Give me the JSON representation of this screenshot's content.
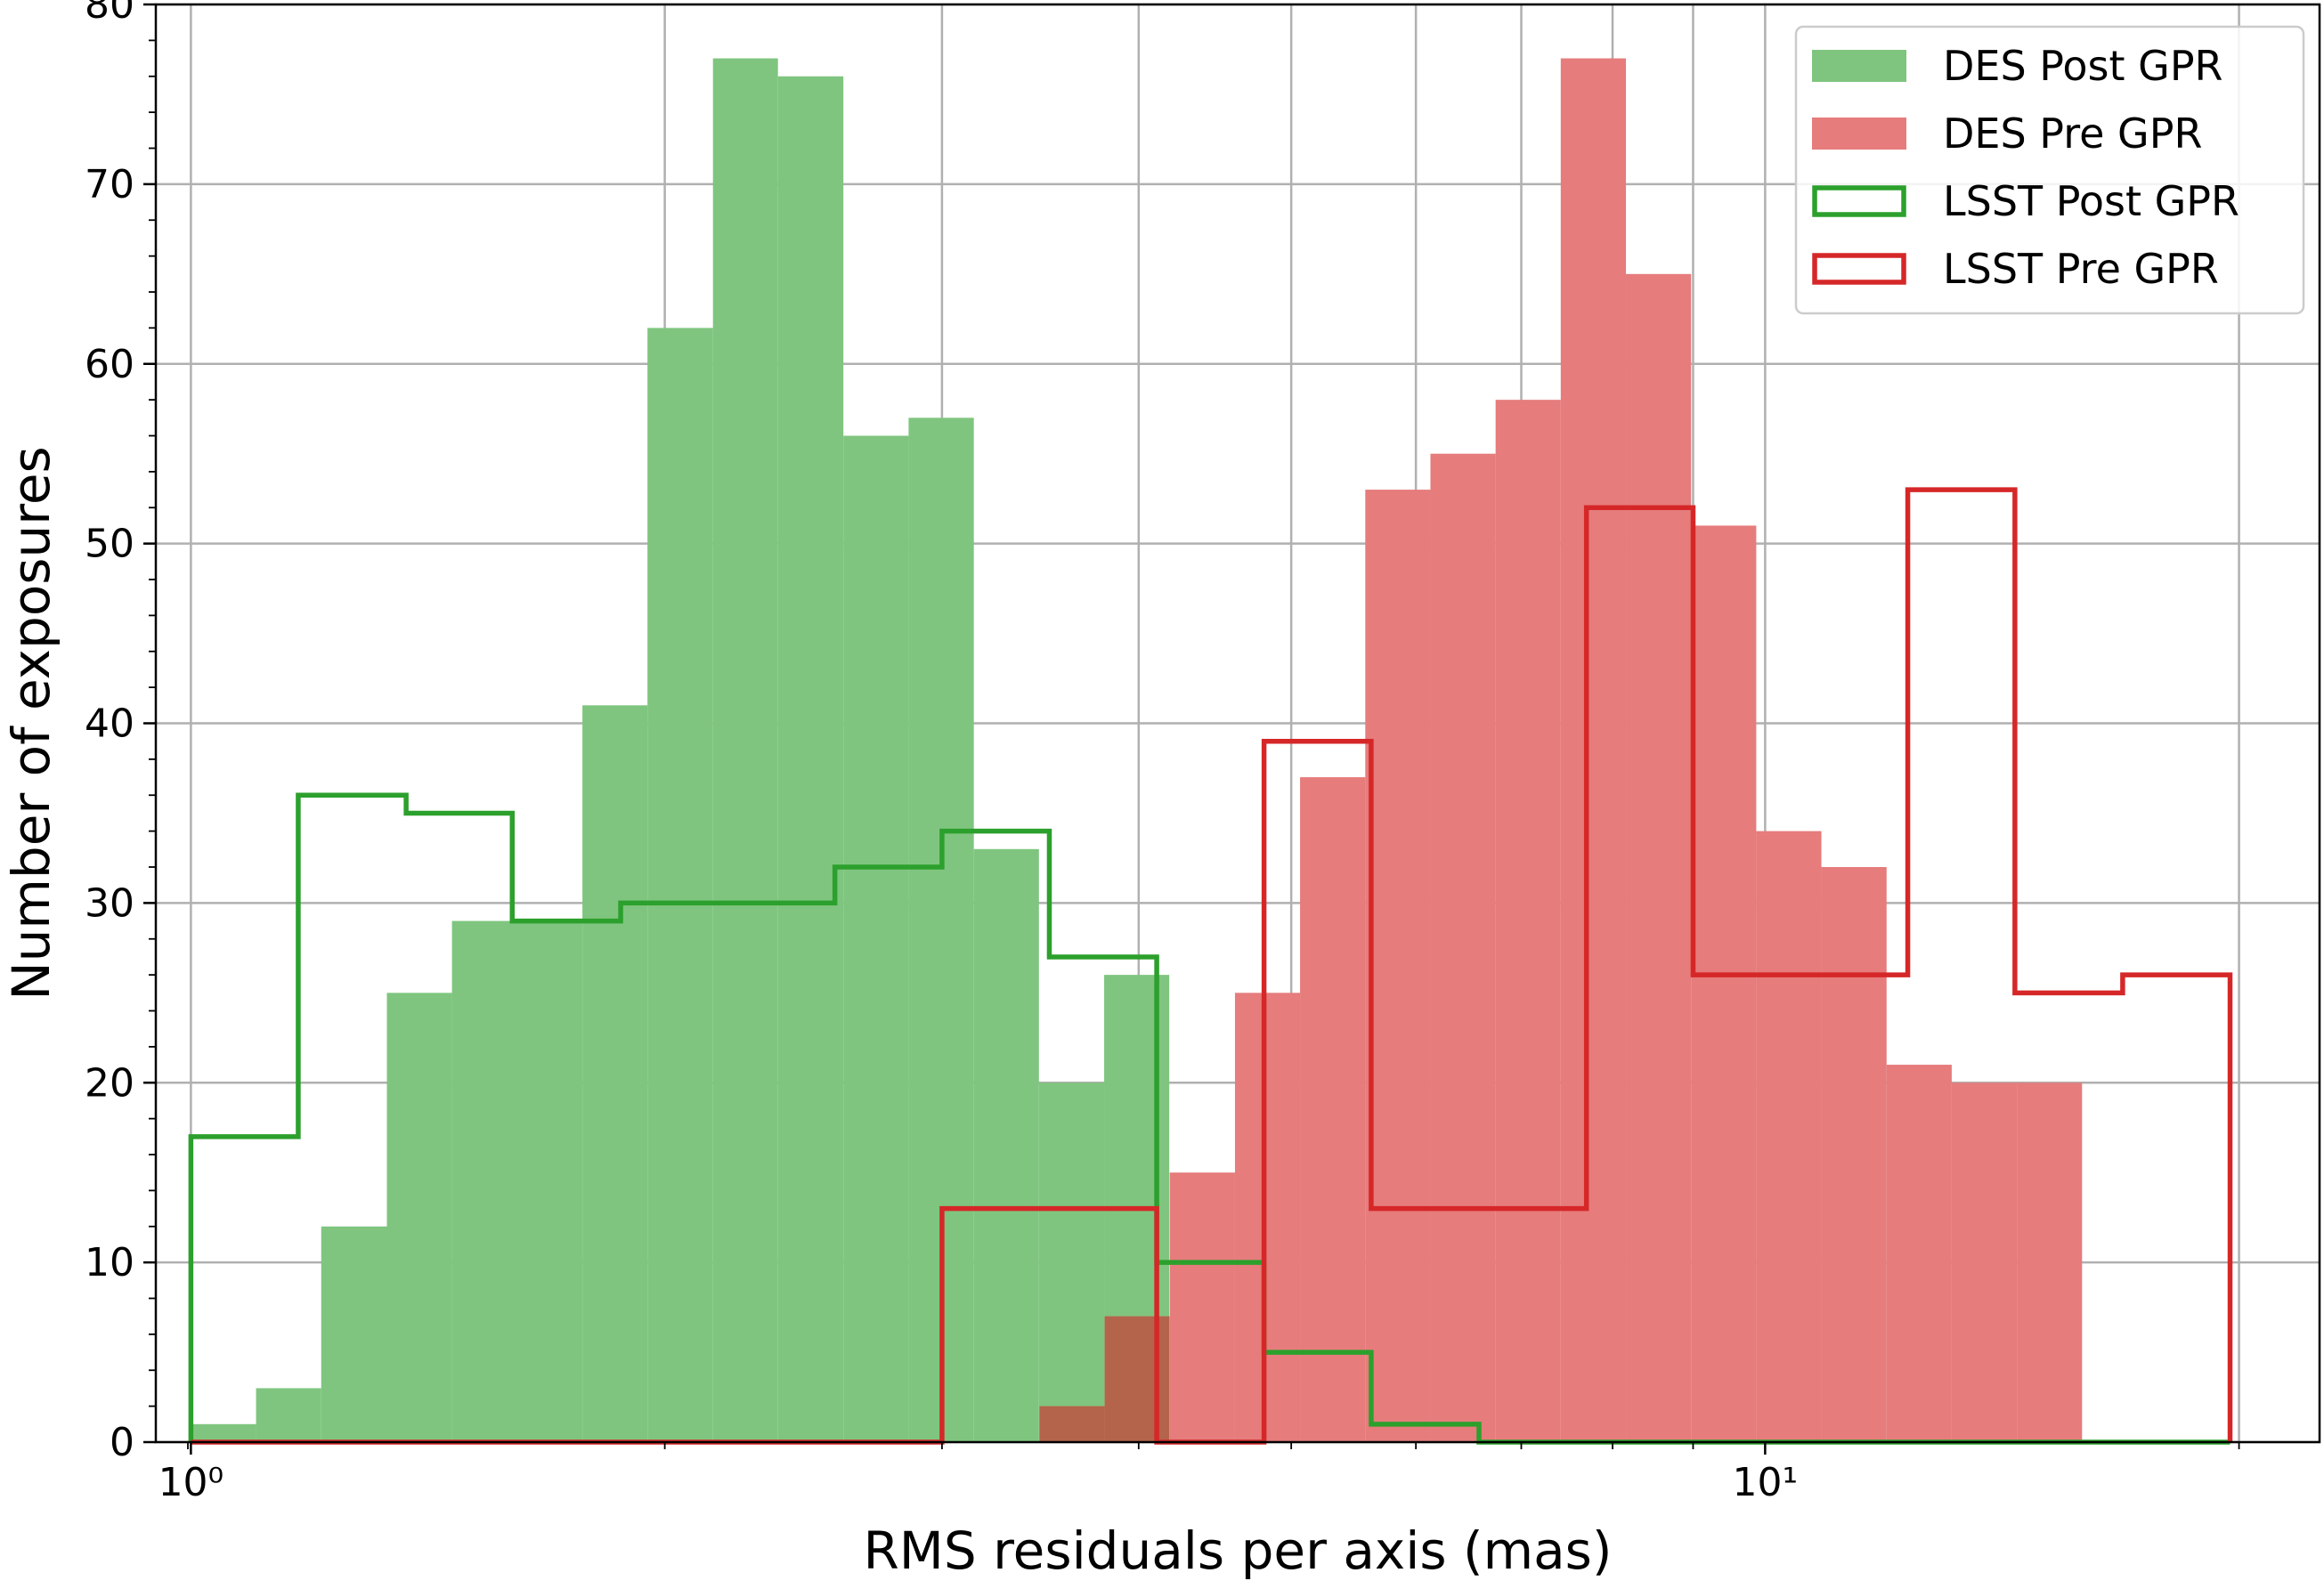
{
  "chart_data": {
    "type": "histogram",
    "title": "",
    "xlabel": "RMS residuals per axis (mas)",
    "ylabel": "Number of exposures",
    "xscale": "log",
    "xlim": [
      0.95,
      22.5
    ],
    "ylim": [
      0,
      80
    ],
    "grid": true,
    "legend_position": "top-right",
    "x_tick_labels": [
      {
        "value": 1,
        "label": "10⁰"
      },
      {
        "value": 10,
        "label": "10¹"
      }
    ],
    "y_ticks": [
      0,
      10,
      20,
      30,
      40,
      50,
      60,
      70,
      80
    ],
    "series": [
      {
        "name": "DES Post GPR",
        "style": "filled",
        "color": "#7fc57f",
        "bin_edges": [
          1.0,
          1.1,
          1.21,
          1.332,
          1.465,
          1.612,
          1.773,
          1.95,
          2.146,
          2.36,
          2.597,
          2.857,
          3.143,
          3.457,
          3.803,
          4.183,
          4.601,
          5.062,
          5.568
        ],
        "counts": [
          1,
          3,
          12,
          25,
          29,
          29,
          41,
          62,
          77,
          76,
          56,
          57,
          33,
          20,
          26,
          0,
          0,
          0
        ]
      },
      {
        "name": "DES Pre GPR",
        "style": "filled",
        "color": "#e67c7c",
        "bin_edges": [
          3.46,
          3.806,
          4.186,
          4.605,
          5.065,
          5.572,
          6.129,
          6.742,
          7.416,
          8.158,
          8.974,
          9.871,
          10.858,
          11.944,
          13.138,
          14.452,
          15.897
        ],
        "counts": [
          2,
          7,
          15,
          25,
          37,
          53,
          55,
          58,
          77,
          65,
          51,
          34,
          32,
          21,
          20,
          20
        ]
      },
      {
        "name": "LSST Post GPR",
        "style": "step",
        "color": "#2ca02c",
        "bin_edges": [
          1.0,
          1.17,
          1.37,
          1.6,
          1.875,
          2.19,
          2.565,
          3.0,
          3.51,
          4.107,
          4.805,
          5.62,
          6.58,
          7.7,
          9.0,
          10.53,
          12.32,
          14.41,
          16.87,
          19.74
        ],
        "counts": [
          17,
          36,
          35,
          29,
          30,
          30,
          32,
          34,
          27,
          10,
          5,
          1,
          0,
          0,
          0,
          0,
          0,
          0,
          0
        ]
      },
      {
        "name": "LSST Pre GPR",
        "style": "step",
        "color": "#d62728",
        "bin_edges": [
          1.0,
          1.17,
          1.37,
          1.6,
          1.875,
          2.19,
          2.565,
          3.0,
          3.51,
          4.107,
          4.805,
          5.62,
          6.58,
          7.7,
          9.0,
          10.53,
          12.32,
          14.41,
          16.87,
          19.74
        ],
        "counts": [
          0,
          0,
          0,
          0,
          0,
          0,
          0,
          13,
          13,
          0,
          39,
          13,
          13,
          52,
          26,
          26,
          53,
          25,
          26
        ]
      }
    ],
    "overlap_color": "#b3644a"
  }
}
